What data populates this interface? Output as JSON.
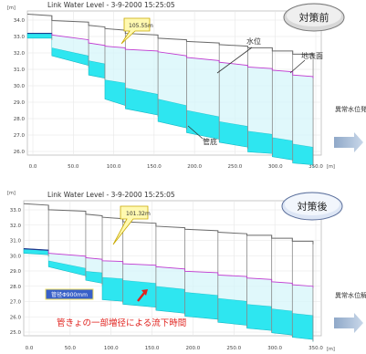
{
  "badges": {
    "before": "対策前",
    "after": "対策後"
  },
  "legend_before": {
    "water_level": "水位",
    "ground": "地表面",
    "pipe": "管底"
  },
  "side_notes": {
    "before": "異常水位発生",
    "after": "異常水位解消"
  },
  "annotations": {
    "pipe_note": "管径Φ900mm",
    "red_note": "管きょの一部増径による流下時間"
  },
  "chart_data": [
    {
      "type": "area",
      "title": "Link Water Level - 3-9-2000 15:25:05",
      "callout": "105.55m",
      "xlabel": "[m]",
      "ylabel": "[m]",
      "xlim": [
        0,
        360
      ],
      "ylim": [
        25.5,
        34.5
      ],
      "xticks": [
        "0.0",
        "50.0",
        "100.0",
        "150.0",
        "200.0",
        "250.0",
        "300.0",
        "350.0"
      ],
      "yticks": [
        "34.0",
        "33.0",
        "32.0",
        "31.0",
        "30.0",
        "29.0",
        "28.0",
        "27.0",
        "26.0"
      ],
      "x": [
        0,
        30,
        30,
        75,
        75,
        95,
        95,
        120,
        120,
        160,
        160,
        195,
        195,
        235,
        235,
        270,
        270,
        300,
        300,
        325,
        325,
        350,
        350
      ],
      "ground": [
        34.3,
        34.2,
        33.9,
        33.8,
        33.6,
        33.5,
        33.4,
        33.3,
        33.1,
        33.0,
        32.8,
        32.7,
        32.6,
        32.5,
        32.4,
        32.3,
        32.2,
        32.2,
        32.0,
        32.0,
        31.8,
        31.8,
        31.6
      ],
      "water": [
        33.1,
        33.1,
        33.0,
        32.7,
        32.5,
        32.35,
        32.3,
        32.2,
        32.1,
        32.0,
        31.95,
        31.7,
        31.6,
        31.4,
        31.3,
        31.1,
        31.0,
        30.9,
        30.8,
        30.7,
        30.5,
        30.4,
        30.3
      ],
      "pipe_top": [
        33.1,
        33.1,
        32.2,
        31.7,
        31.4,
        31.2,
        30.2,
        30.0,
        29.7,
        29.3,
        29.0,
        28.6,
        28.3,
        27.9,
        27.6,
        27.3,
        27.0,
        26.8,
        26.6,
        26.4,
        26.2,
        26.0,
        25.8
      ],
      "pipe_bottom": [
        32.8,
        32.8,
        31.7,
        31.1,
        30.5,
        30.3,
        29.0,
        28.6,
        28.4,
        28.0,
        27.6,
        27.2,
        26.9,
        26.5,
        26.3,
        26.0,
        25.7,
        25.6,
        25.4,
        25.2,
        25.0,
        24.9,
        24.7
      ]
    },
    {
      "type": "area",
      "title": "Link Water Level - 3-9-2000 15:25:05",
      "callout": "101.32m",
      "xlabel": "[m]",
      "ylabel": "[m]",
      "xlim": [
        0,
        360
      ],
      "ylim": [
        25.5,
        34.5
      ],
      "xticks": [
        "0.0",
        "50.0",
        "100.0",
        "150.0",
        "200.0",
        "250.0",
        "300.0",
        "350.0"
      ],
      "yticks": [
        "33.0",
        "32.0",
        "31.0",
        "30.0",
        "29.0",
        "28.0",
        "27.0",
        "26.0",
        "25.0"
      ],
      "x": [
        0,
        30,
        30,
        75,
        75,
        95,
        95,
        120,
        120,
        160,
        160,
        195,
        195,
        235,
        235,
        270,
        270,
        300,
        300,
        325,
        325,
        350,
        350
      ],
      "ground": [
        34.3,
        34.2,
        33.9,
        33.8,
        33.6,
        33.5,
        33.4,
        33.3,
        33.1,
        33.0,
        32.8,
        32.7,
        32.6,
        32.5,
        32.4,
        32.3,
        32.2,
        32.2,
        32.0,
        32.0,
        31.8,
        31.8,
        31.6
      ],
      "water": [
        31.3,
        31.2,
        31.0,
        30.8,
        30.7,
        30.6,
        30.5,
        30.45,
        30.3,
        30.2,
        30.1,
        29.95,
        29.8,
        29.7,
        29.55,
        29.45,
        29.35,
        29.25,
        29.1,
        29.0,
        28.9,
        28.8,
        28.7
      ],
      "pipe_top": [
        31.3,
        31.2,
        30.5,
        30.0,
        29.8,
        29.7,
        29.4,
        29.3,
        29.2,
        29.0,
        28.8,
        28.6,
        28.4,
        28.2,
        28.0,
        27.8,
        27.6,
        27.45,
        27.3,
        27.15,
        27.0,
        26.85,
        26.7
      ],
      "pipe_bottom": [
        31.0,
        30.9,
        30.1,
        29.5,
        29.2,
        29.0,
        27.9,
        27.8,
        27.6,
        27.4,
        27.2,
        27.0,
        26.8,
        26.6,
        26.4,
        26.2,
        26.0,
        25.85,
        25.7,
        25.55,
        25.4,
        25.25,
        25.1
      ]
    }
  ]
}
